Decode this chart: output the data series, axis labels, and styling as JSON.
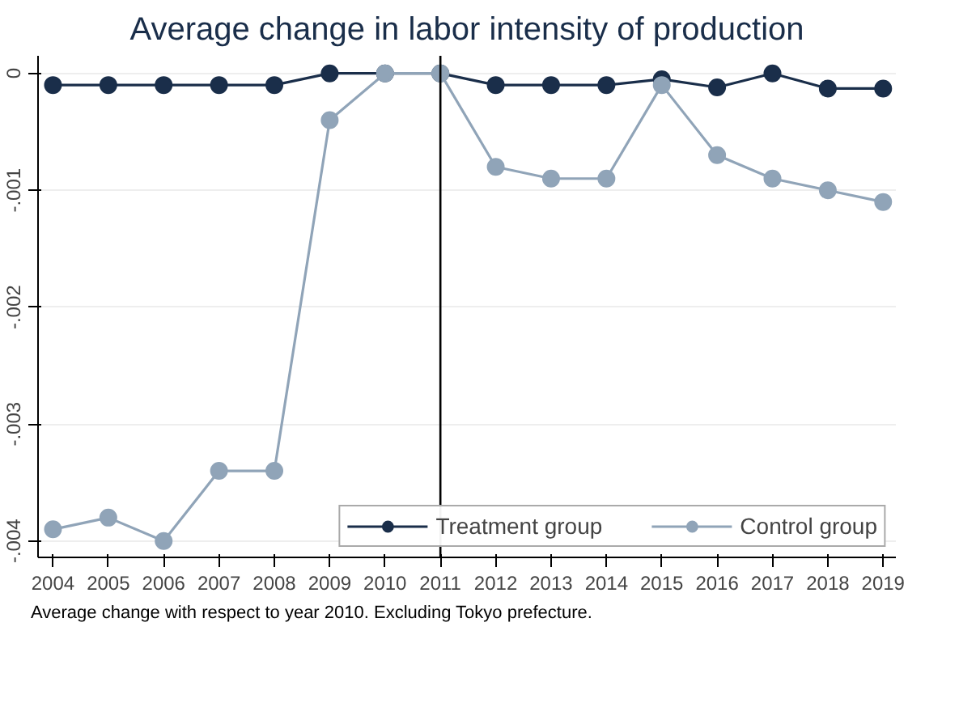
{
  "chart_data": {
    "type": "line",
    "title": "Average change in labor intensity of production",
    "x": [
      2004,
      2005,
      2006,
      2007,
      2008,
      2009,
      2010,
      2011,
      2012,
      2013,
      2014,
      2015,
      2016,
      2017,
      2018,
      2019
    ],
    "series": [
      {
        "name": "Treatment group",
        "color": "#1a2e4a",
        "values": [
          -0.0001,
          -0.0001,
          -0.0001,
          -0.0001,
          -0.0001,
          0,
          0,
          0,
          -0.0001,
          -0.0001,
          -0.0001,
          -5e-05,
          -0.00012,
          0,
          -0.00013,
          -0.00013
        ]
      },
      {
        "name": "Control group",
        "color": "#90a4b8",
        "values": [
          -0.0039,
          -0.0038,
          -0.004,
          -0.0034,
          -0.0034,
          -0.0004,
          0,
          0,
          -0.0008,
          -0.0009,
          -0.0009,
          -0.0001,
          -0.0007,
          -0.0009,
          -0.001,
          -0.0011
        ]
      }
    ],
    "xlim": [
      2003.73,
      2019.23
    ],
    "ylim": [
      -0.00414,
      0.00015
    ],
    "xticks": [
      2004,
      2005,
      2006,
      2007,
      2008,
      2009,
      2010,
      2011,
      2012,
      2013,
      2014,
      2015,
      2016,
      2017,
      2018,
      2019
    ],
    "yticks": [
      {
        "value": -0.004,
        "label": "-.004"
      },
      {
        "value": -0.003,
        "label": "-.003"
      },
      {
        "value": -0.002,
        "label": "-.002"
      },
      {
        "value": -0.001,
        "label": "-.001"
      },
      {
        "value": 0,
        "label": "0"
      }
    ],
    "ref_lines": [
      {
        "axis": "x",
        "value": 2011,
        "label": null,
        "color": "#000000"
      }
    ],
    "grid": "y",
    "legend": "bottom right",
    "marker": "circle",
    "line_style": "solid",
    "annotations": [
      "Average change with respect to year 2010. Excluding Tokyo prefecture."
    ]
  }
}
